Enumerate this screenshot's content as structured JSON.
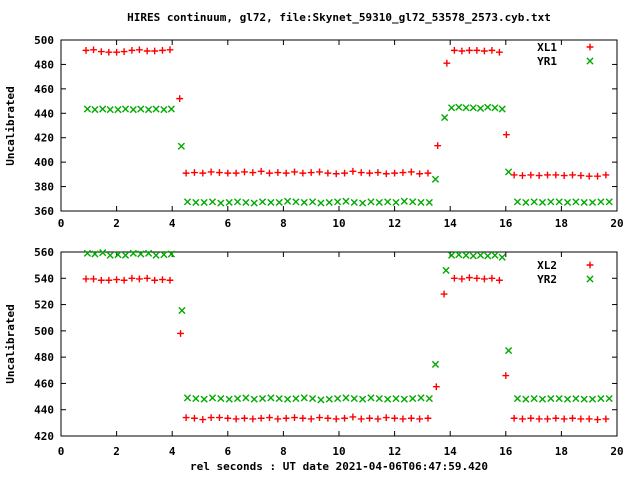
{
  "title": "HIRES continuum, gl72, file:Skynet_59310_gl72_53578_2573.cyb.txt",
  "xlabel": "rel seconds : UT date 2021-04-06T06:47:59.420",
  "colors": {
    "series_red": "#ff0000",
    "series_green": "#00aa00",
    "axis": "#000000",
    "background": "#ffffff"
  },
  "chart_data": [
    {
      "type": "scatter",
      "panel": "top",
      "ylabel": "Uncalibrated",
      "xlim": [
        0,
        20
      ],
      "ylim": [
        360,
        500
      ],
      "xticks": [
        0,
        2,
        4,
        6,
        8,
        10,
        12,
        14,
        16,
        18,
        20
      ],
      "yticks": [
        360,
        380,
        400,
        420,
        440,
        460,
        480,
        500
      ],
      "grid": false,
      "legend_position": "top-right-inside",
      "series": [
        {
          "name": "XL1",
          "marker": "plus",
          "color": "#ff0000",
          "points": [
            [
              0.9,
              491.5
            ],
            [
              1.17,
              492
            ],
            [
              1.45,
              490.5
            ],
            [
              1.72,
              490
            ],
            [
              2.0,
              490
            ],
            [
              2.27,
              490.5
            ],
            [
              2.55,
              491.5
            ],
            [
              2.82,
              492
            ],
            [
              3.1,
              491
            ],
            [
              3.37,
              491
            ],
            [
              3.65,
              491.5
            ],
            [
              3.92,
              492
            ],
            [
              4.27,
              452
            ],
            [
              4.5,
              391
            ],
            [
              4.8,
              391.5
            ],
            [
              5.1,
              391
            ],
            [
              5.4,
              392
            ],
            [
              5.7,
              391.5
            ],
            [
              6.0,
              391
            ],
            [
              6.3,
              391
            ],
            [
              6.6,
              392
            ],
            [
              6.9,
              391.5
            ],
            [
              7.2,
              392.5
            ],
            [
              7.5,
              391
            ],
            [
              7.8,
              391.5
            ],
            [
              8.1,
              391
            ],
            [
              8.4,
              392
            ],
            [
              8.7,
              391
            ],
            [
              9.0,
              391.5
            ],
            [
              9.3,
              392
            ],
            [
              9.6,
              391
            ],
            [
              9.9,
              390.5
            ],
            [
              10.2,
              391
            ],
            [
              10.5,
              392.5
            ],
            [
              10.8,
              391.5
            ],
            [
              11.1,
              391
            ],
            [
              11.4,
              391.5
            ],
            [
              11.7,
              390.5
            ],
            [
              12.0,
              391
            ],
            [
              12.3,
              391.5
            ],
            [
              12.6,
              392
            ],
            [
              12.9,
              390.5
            ],
            [
              13.2,
              391
            ],
            [
              13.55,
              413.5
            ],
            [
              13.88,
              481
            ],
            [
              14.15,
              491.5
            ],
            [
              14.42,
              491
            ],
            [
              14.69,
              491.5
            ],
            [
              14.96,
              491.5
            ],
            [
              15.23,
              491
            ],
            [
              15.5,
              491.5
            ],
            [
              15.77,
              490
            ],
            [
              16.02,
              422.5
            ],
            [
              16.3,
              389.5
            ],
            [
              16.6,
              389
            ],
            [
              16.9,
              389.5
            ],
            [
              17.2,
              389
            ],
            [
              17.5,
              389.5
            ],
            [
              17.8,
              389.5
            ],
            [
              18.1,
              389
            ],
            [
              18.4,
              389.5
            ],
            [
              18.7,
              389
            ],
            [
              19.0,
              388.5
            ],
            [
              19.3,
              388.5
            ],
            [
              19.6,
              389.5
            ]
          ]
        },
        {
          "name": "YR1",
          "marker": "cross",
          "color": "#00aa00",
          "points": [
            [
              0.95,
              443.5
            ],
            [
              1.22,
              443
            ],
            [
              1.5,
              443.5
            ],
            [
              1.77,
              443
            ],
            [
              2.05,
              443
            ],
            [
              2.32,
              443.5
            ],
            [
              2.6,
              443
            ],
            [
              2.87,
              443.5
            ],
            [
              3.15,
              443
            ],
            [
              3.42,
              443.5
            ],
            [
              3.7,
              443
            ],
            [
              3.97,
              443.5
            ],
            [
              4.33,
              413
            ],
            [
              4.55,
              367.5
            ],
            [
              4.85,
              367
            ],
            [
              5.15,
              367
            ],
            [
              5.45,
              367.5
            ],
            [
              5.75,
              366.5
            ],
            [
              6.05,
              367
            ],
            [
              6.35,
              367.5
            ],
            [
              6.65,
              367
            ],
            [
              6.95,
              366.5
            ],
            [
              7.25,
              367.5
            ],
            [
              7.55,
              367
            ],
            [
              7.85,
              367
            ],
            [
              8.15,
              368
            ],
            [
              8.45,
              367.5
            ],
            [
              8.75,
              367
            ],
            [
              9.05,
              367.5
            ],
            [
              9.35,
              366.5
            ],
            [
              9.65,
              367
            ],
            [
              9.95,
              367.5
            ],
            [
              10.25,
              368
            ],
            [
              10.55,
              367
            ],
            [
              10.85,
              366.5
            ],
            [
              11.15,
              367.5
            ],
            [
              11.45,
              367
            ],
            [
              11.75,
              367.5
            ],
            [
              12.05,
              367
            ],
            [
              12.35,
              368
            ],
            [
              12.65,
              367.5
            ],
            [
              12.95,
              367
            ],
            [
              13.25,
              367
            ],
            [
              13.47,
              386
            ],
            [
              13.8,
              436.5
            ],
            [
              14.05,
              444.5
            ],
            [
              14.31,
              445
            ],
            [
              14.57,
              444.5
            ],
            [
              14.83,
              444.5
            ],
            [
              15.09,
              444
            ],
            [
              15.35,
              445
            ],
            [
              15.61,
              444.5
            ],
            [
              15.87,
              443.5
            ],
            [
              16.1,
              392
            ],
            [
              16.42,
              367.5
            ],
            [
              16.72,
              367
            ],
            [
              17.02,
              367.5
            ],
            [
              17.32,
              367
            ],
            [
              17.62,
              367.5
            ],
            [
              17.92,
              367.5
            ],
            [
              18.22,
              367
            ],
            [
              18.52,
              367.5
            ],
            [
              18.82,
              367
            ],
            [
              19.12,
              367
            ],
            [
              19.42,
              367.5
            ],
            [
              19.72,
              367.5
            ]
          ]
        }
      ]
    },
    {
      "type": "scatter",
      "panel": "bottom",
      "ylabel": "Uncalibrated",
      "xlim": [
        0,
        20
      ],
      "ylim": [
        420,
        560
      ],
      "xticks": [
        0,
        2,
        4,
        6,
        8,
        10,
        12,
        14,
        16,
        18,
        20
      ],
      "yticks": [
        420,
        440,
        460,
        480,
        500,
        520,
        540,
        560
      ],
      "grid": false,
      "legend_position": "top-right-inside",
      "series": [
        {
          "name": "XL2",
          "marker": "plus",
          "color": "#ff0000",
          "points": [
            [
              0.9,
              539.5
            ],
            [
              1.17,
              539.5
            ],
            [
              1.45,
              538.5
            ],
            [
              1.72,
              538.5
            ],
            [
              2.0,
              539
            ],
            [
              2.27,
              538.5
            ],
            [
              2.55,
              540
            ],
            [
              2.82,
              539.5
            ],
            [
              3.1,
              540
            ],
            [
              3.37,
              538.5
            ],
            [
              3.65,
              539
            ],
            [
              3.92,
              538.5
            ],
            [
              4.3,
              498
            ],
            [
              4.5,
              434
            ],
            [
              4.8,
              433.5
            ],
            [
              5.1,
              432.5
            ],
            [
              5.4,
              434
            ],
            [
              5.7,
              434
            ],
            [
              6.0,
              433.5
            ],
            [
              6.3,
              433
            ],
            [
              6.6,
              433.5
            ],
            [
              6.9,
              433
            ],
            [
              7.2,
              433.5
            ],
            [
              7.5,
              434
            ],
            [
              7.8,
              433
            ],
            [
              8.1,
              433.5
            ],
            [
              8.4,
              434
            ],
            [
              8.7,
              433.5
            ],
            [
              9.0,
              433
            ],
            [
              9.3,
              434
            ],
            [
              9.6,
              433.5
            ],
            [
              9.9,
              433
            ],
            [
              10.2,
              433.5
            ],
            [
              10.5,
              434.5
            ],
            [
              10.8,
              433
            ],
            [
              11.1,
              433.5
            ],
            [
              11.4,
              433
            ],
            [
              11.7,
              434
            ],
            [
              12.0,
              433.5
            ],
            [
              12.3,
              433
            ],
            [
              12.6,
              433.5
            ],
            [
              12.9,
              433
            ],
            [
              13.2,
              433.5
            ],
            [
              13.5,
              457.5
            ],
            [
              13.78,
              528
            ],
            [
              14.15,
              540
            ],
            [
              14.42,
              539.5
            ],
            [
              14.69,
              540.5
            ],
            [
              14.96,
              540
            ],
            [
              15.23,
              539.5
            ],
            [
              15.5,
              540
            ],
            [
              15.77,
              538.5
            ],
            [
              16.0,
              466
            ],
            [
              16.3,
              433.5
            ],
            [
              16.6,
              433
            ],
            [
              16.9,
              433.5
            ],
            [
              17.2,
              433
            ],
            [
              17.5,
              433
            ],
            [
              17.8,
              433.5
            ],
            [
              18.1,
              433
            ],
            [
              18.4,
              433.5
            ],
            [
              18.7,
              433
            ],
            [
              19.0,
              433
            ],
            [
              19.3,
              432.5
            ],
            [
              19.6,
              433
            ]
          ]
        },
        {
          "name": "YR2",
          "marker": "cross",
          "color": "#00aa00",
          "points": [
            [
              0.95,
              559
            ],
            [
              1.22,
              558.5
            ],
            [
              1.5,
              559.5
            ],
            [
              1.77,
              557.5
            ],
            [
              2.05,
              558
            ],
            [
              2.32,
              557.5
            ],
            [
              2.6,
              559
            ],
            [
              2.87,
              558.5
            ],
            [
              3.15,
              559
            ],
            [
              3.42,
              557.5
            ],
            [
              3.7,
              558
            ],
            [
              3.97,
              558.5
            ],
            [
              4.35,
              515.5
            ],
            [
              4.55,
              449
            ],
            [
              4.85,
              448.5
            ],
            [
              5.15,
              448
            ],
            [
              5.45,
              449
            ],
            [
              5.75,
              448.5
            ],
            [
              6.05,
              448
            ],
            [
              6.35,
              448.5
            ],
            [
              6.65,
              449
            ],
            [
              6.95,
              448
            ],
            [
              7.25,
              448.5
            ],
            [
              7.55,
              449
            ],
            [
              7.85,
              448.5
            ],
            [
              8.15,
              448
            ],
            [
              8.45,
              448.5
            ],
            [
              8.75,
              449
            ],
            [
              9.05,
              448.5
            ],
            [
              9.35,
              447.5
            ],
            [
              9.65,
              448
            ],
            [
              9.95,
              448.5
            ],
            [
              10.25,
              449
            ],
            [
              10.55,
              448.5
            ],
            [
              10.85,
              448
            ],
            [
              11.15,
              449
            ],
            [
              11.45,
              448.5
            ],
            [
              11.75,
              448
            ],
            [
              12.05,
              448.5
            ],
            [
              12.35,
              448
            ],
            [
              12.65,
              448.5
            ],
            [
              12.95,
              449
            ],
            [
              13.25,
              448.5
            ],
            [
              13.47,
              474.5
            ],
            [
              13.85,
              546
            ],
            [
              14.05,
              557.5
            ],
            [
              14.31,
              558
            ],
            [
              14.57,
              557.5
            ],
            [
              14.83,
              557
            ],
            [
              15.09,
              557.5
            ],
            [
              15.35,
              557
            ],
            [
              15.61,
              557.5
            ],
            [
              15.87,
              556
            ],
            [
              16.1,
              485
            ],
            [
              16.42,
              448.5
            ],
            [
              16.72,
              448
            ],
            [
              17.02,
              448.5
            ],
            [
              17.32,
              448
            ],
            [
              17.62,
              448.5
            ],
            [
              17.92,
              448.5
            ],
            [
              18.22,
              448
            ],
            [
              18.52,
              448.5
            ],
            [
              18.82,
              448
            ],
            [
              19.12,
              448
            ],
            [
              19.42,
              448.5
            ],
            [
              19.72,
              448.5
            ]
          ]
        }
      ]
    }
  ]
}
